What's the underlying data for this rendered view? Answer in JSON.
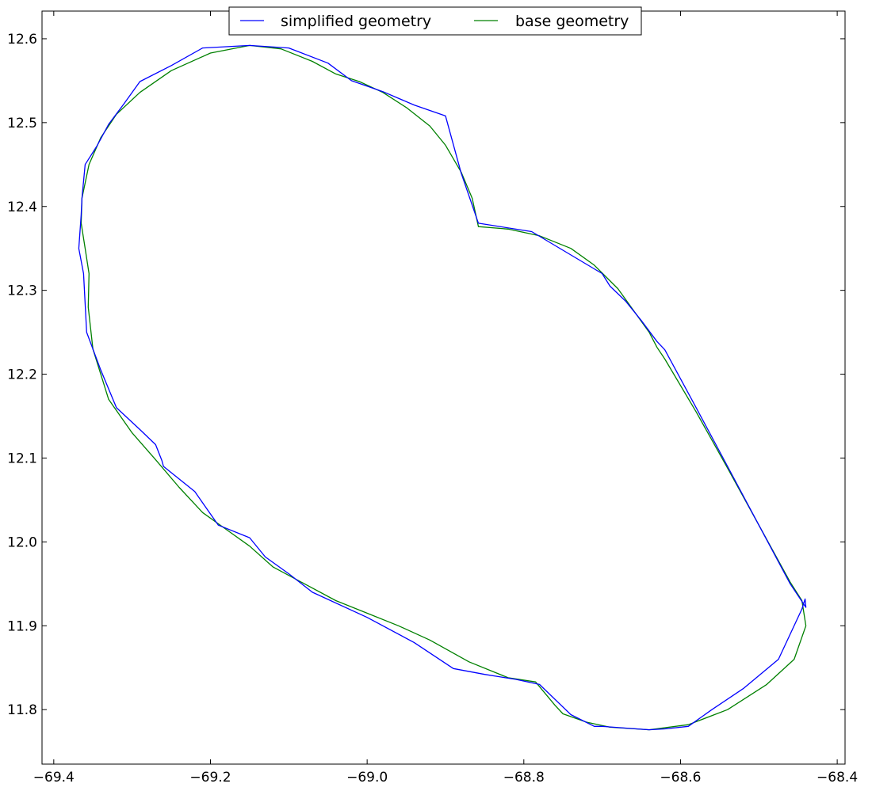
{
  "chart_data": {
    "type": "line",
    "title": "",
    "xlabel": "",
    "ylabel": "",
    "xlim": [
      -69.415,
      -68.39
    ],
    "ylim": [
      11.735,
      12.633
    ],
    "x_ticks": [
      -69.4,
      -69.2,
      -69.0,
      -68.8,
      -68.6,
      -68.4
    ],
    "x_tick_labels": [
      "−69.4",
      "−69.2",
      "−69.0",
      "−68.8",
      "−68.6",
      "−68.4"
    ],
    "y_ticks": [
      11.8,
      11.9,
      12.0,
      12.1,
      12.2,
      12.3,
      12.4,
      12.5,
      12.6
    ],
    "y_tick_labels": [
      "11.8",
      "11.9",
      "12.0",
      "12.1",
      "12.2",
      "12.3",
      "12.4",
      "12.5",
      "12.6"
    ],
    "grid": false,
    "legend": {
      "position": "top-center",
      "columns": 2
    },
    "series": [
      {
        "name": "simplified geometry",
        "color": "#0000ff",
        "x": [
          -69.15,
          -69.1,
          -69.05,
          -69.02,
          -68.98,
          -68.94,
          -68.9,
          -68.88,
          -68.858,
          -68.79,
          -68.7,
          -68.69,
          -68.67,
          -68.65,
          -68.63,
          -68.62,
          -68.58,
          -68.54,
          -68.5,
          -68.46,
          -68.44,
          -68.441,
          -68.445,
          -68.475,
          -68.52,
          -68.56,
          -68.59,
          -68.62,
          -68.64,
          -68.67,
          -68.7,
          -68.71,
          -68.74,
          -68.78,
          -68.81,
          -68.85,
          -68.89,
          -68.94,
          -69.0,
          -69.07,
          -69.1,
          -69.13,
          -69.15,
          -69.19,
          -69.205,
          -69.22,
          -69.26,
          -69.262,
          -69.27,
          -69.29,
          -69.32,
          -69.34,
          -69.358,
          -69.362,
          -69.368,
          -69.365,
          -69.364,
          -69.36,
          -69.345,
          -69.33,
          -69.31,
          -69.29,
          -69.25,
          -69.21,
          -69.15
        ],
        "y": [
          12.592,
          12.589,
          12.571,
          12.55,
          12.537,
          12.521,
          12.508,
          12.44,
          12.38,
          12.37,
          12.32,
          12.305,
          12.287,
          12.264,
          12.239,
          12.229,
          12.16,
          12.09,
          12.02,
          11.95,
          11.922,
          11.932,
          11.92,
          11.86,
          11.825,
          11.8,
          11.78,
          11.777,
          11.776,
          11.778,
          11.78,
          11.78,
          11.794,
          11.83,
          11.836,
          11.842,
          11.849,
          11.88,
          11.91,
          11.94,
          11.962,
          11.982,
          12.005,
          12.02,
          12.04,
          12.06,
          12.09,
          12.097,
          12.116,
          12.134,
          12.16,
          12.205,
          12.25,
          12.32,
          12.35,
          12.39,
          12.41,
          12.45,
          12.472,
          12.498,
          12.523,
          12.549,
          12.568,
          12.589,
          12.592
        ]
      },
      {
        "name": "base geometry",
        "color": "#008000",
        "x": [
          -69.15,
          -69.11,
          -69.07,
          -69.04,
          -69.01,
          -68.98,
          -68.95,
          -68.92,
          -68.9,
          -68.88,
          -68.866,
          -68.858,
          -68.82,
          -68.78,
          -68.74,
          -68.71,
          -68.68,
          -68.66,
          -68.64,
          -68.63,
          -68.62,
          -68.58,
          -68.54,
          -68.5,
          -68.46,
          -68.445,
          -68.44,
          -68.455,
          -68.49,
          -68.54,
          -68.59,
          -68.64,
          -68.69,
          -68.72,
          -68.75,
          -68.76,
          -68.785,
          -68.82,
          -68.87,
          -68.92,
          -68.96,
          -69.0,
          -69.04,
          -69.08,
          -69.12,
          -69.15,
          -69.18,
          -69.21,
          -69.24,
          -69.27,
          -69.3,
          -69.33,
          -69.35,
          -69.356,
          -69.355,
          -69.36,
          -69.365,
          -69.364,
          -69.355,
          -69.34,
          -69.32,
          -69.29,
          -69.25,
          -69.2,
          -69.15
        ],
        "y": [
          12.592,
          12.588,
          12.573,
          12.558,
          12.549,
          12.536,
          12.518,
          12.496,
          12.473,
          12.441,
          12.41,
          12.376,
          12.373,
          12.365,
          12.35,
          12.33,
          12.302,
          12.276,
          12.25,
          12.232,
          12.218,
          12.155,
          12.088,
          12.02,
          11.952,
          11.93,
          11.9,
          11.86,
          11.83,
          11.8,
          11.782,
          11.776,
          11.779,
          11.785,
          11.795,
          11.805,
          11.833,
          11.838,
          11.857,
          11.883,
          11.9,
          11.915,
          11.93,
          11.95,
          11.97,
          11.995,
          12.015,
          12.035,
          12.065,
          12.098,
          12.13,
          12.17,
          12.23,
          12.28,
          12.32,
          12.35,
          12.38,
          12.41,
          12.45,
          12.482,
          12.51,
          12.536,
          12.562,
          12.583,
          12.592
        ]
      }
    ]
  }
}
